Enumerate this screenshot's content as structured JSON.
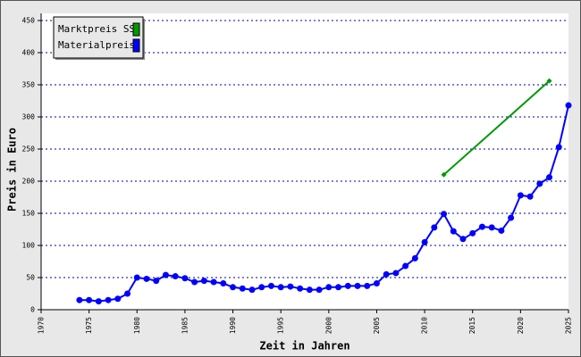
{
  "chart_data": {
    "type": "line",
    "x_label": "Zeit in Jahren",
    "y_label": "Preis in Euro",
    "xlim": [
      1970,
      2025
    ],
    "xticks": [
      1970,
      1975,
      1980,
      1985,
      1990,
      1995,
      2000,
      2005,
      2010,
      2015,
      2020,
      2025
    ],
    "ylim": [
      0,
      450
    ],
    "yticks": [
      0,
      50,
      100,
      150,
      200,
      250,
      300,
      350,
      400,
      450
    ],
    "grid": true,
    "legend": "top-left",
    "series": [
      {
        "name": "Marktpreis SS",
        "color": "#009900",
        "x": [
          2012,
          2023
        ],
        "values": [
          210,
          356
        ]
      },
      {
        "name": "Materialpreis",
        "color": "#0000ff",
        "x": [
          1974,
          1975,
          1976,
          1977,
          1978,
          1979,
          1980,
          1981,
          1982,
          1983,
          1984,
          1985,
          1986,
          1987,
          1988,
          1989,
          1990,
          1991,
          1992,
          1993,
          1994,
          1995,
          1996,
          1997,
          1998,
          1999,
          2000,
          2001,
          2002,
          2003,
          2004,
          2005,
          2006,
          2007,
          2008,
          2009,
          2010,
          2011,
          2012,
          2013,
          2014,
          2015,
          2016,
          2017,
          2018,
          2019,
          2020,
          2021,
          2022,
          2023,
          2024,
          2025
        ],
        "values": [
          15,
          15,
          13,
          15,
          17,
          25,
          50,
          48,
          45,
          54,
          52,
          49,
          43,
          45,
          43,
          41,
          35,
          33,
          31,
          35,
          37,
          35,
          36,
          33,
          31,
          31,
          35,
          35,
          37,
          37,
          37,
          41,
          55,
          57,
          68,
          80,
          105,
          128,
          149,
          122,
          110,
          119,
          129,
          128,
          123,
          143,
          178,
          176,
          196,
          206,
          253,
          318
        ]
      }
    ]
  }
}
